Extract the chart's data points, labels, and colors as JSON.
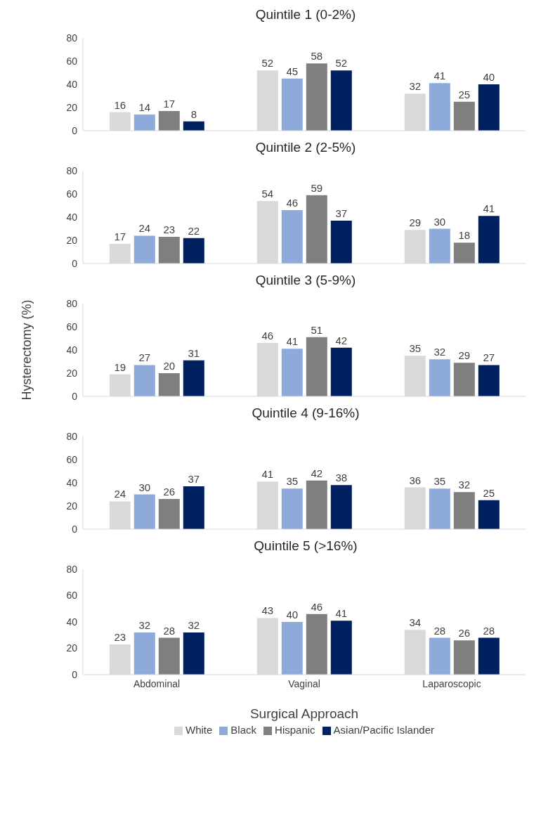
{
  "chart_data": [
    {
      "type": "bar",
      "title": "Quintile 1 (0-2%)",
      "categories": [
        null,
        null,
        null
      ],
      "series": [
        {
          "color": "#d9d9d9",
          "values": [
            16,
            52,
            32
          ]
        },
        {
          "color": "#8eaadb",
          "values": [
            14,
            45,
            41
          ]
        },
        {
          "color": "#7f7f7f",
          "values": [
            17,
            58,
            25
          ]
        },
        {
          "color": "#002060",
          "values": [
            8,
            52,
            40
          ]
        }
      ],
      "ylim": [
        0,
        80
      ],
      "yticks": [
        0,
        20,
        40,
        60,
        80
      ],
      "data_labels": true,
      "tick_labels": "y"
    },
    {
      "type": "bar",
      "title": "Quintile 2 (2-5%)",
      "categories": [
        null,
        null,
        null
      ],
      "series": [
        {
          "color": "#d9d9d9",
          "values": [
            17,
            54,
            29
          ]
        },
        {
          "color": "#8eaadb",
          "values": [
            24,
            46,
            30
          ]
        },
        {
          "color": "#7f7f7f",
          "values": [
            23,
            59,
            18
          ]
        },
        {
          "color": "#002060",
          "values": [
            22,
            37,
            41
          ]
        }
      ],
      "ylim": [
        0,
        80
      ],
      "yticks": [
        0,
        20,
        40,
        60,
        80
      ],
      "data_labels": true,
      "tick_labels": "y"
    },
    {
      "type": "bar",
      "title": "Quintile 3 (5-9%)",
      "ylabel": "Hysterectomy (%)",
      "categories": [
        null,
        null,
        null
      ],
      "series": [
        {
          "color": "#d9d9d9",
          "values": [
            19,
            46,
            35
          ]
        },
        {
          "color": "#8eaadb",
          "values": [
            27,
            41,
            32
          ]
        },
        {
          "color": "#7f7f7f",
          "values": [
            20,
            51,
            29
          ]
        },
        {
          "color": "#002060",
          "values": [
            31,
            42,
            27
          ]
        }
      ],
      "ylim": [
        0,
        80
      ],
      "yticks": [
        0,
        20,
        40,
        60,
        80
      ],
      "data_labels": true,
      "tick_labels": "y"
    },
    {
      "type": "bar",
      "title": "Quintile 4 (9-16%)",
      "categories": [
        null,
        null,
        null
      ],
      "series": [
        {
          "color": "#d9d9d9",
          "values": [
            24,
            41,
            36
          ]
        },
        {
          "color": "#8eaadb",
          "values": [
            30,
            35,
            35
          ]
        },
        {
          "color": "#7f7f7f",
          "values": [
            26,
            42,
            32
          ]
        },
        {
          "color": "#002060",
          "values": [
            37,
            38,
            25
          ]
        }
      ],
      "ylim": [
        0,
        80
      ],
      "yticks": [
        0,
        20,
        40,
        60,
        80
      ],
      "data_labels": true,
      "tick_labels": "y"
    },
    {
      "type": "bar",
      "title": "Quintile 5 (>16%)",
      "xlabel": "Surgical Approach",
      "categories": [
        "Abdominal",
        "Vaginal",
        "Laparoscopic"
      ],
      "series": [
        {
          "name": "White",
          "color": "#d9d9d9",
          "values": [
            23,
            43,
            34
          ]
        },
        {
          "name": "Black",
          "color": "#8eaadb",
          "values": [
            32,
            40,
            28
          ]
        },
        {
          "name": "Hispanic",
          "color": "#7f7f7f",
          "values": [
            28,
            46,
            26
          ]
        },
        {
          "name": "Asian/Pacific Islander",
          "color": "#002060",
          "values": [
            32,
            41,
            28
          ]
        }
      ],
      "ylim": [
        0,
        80
      ],
      "yticks": [
        0,
        20,
        40,
        60,
        80
      ],
      "data_labels": true,
      "legend": "bottom"
    }
  ]
}
